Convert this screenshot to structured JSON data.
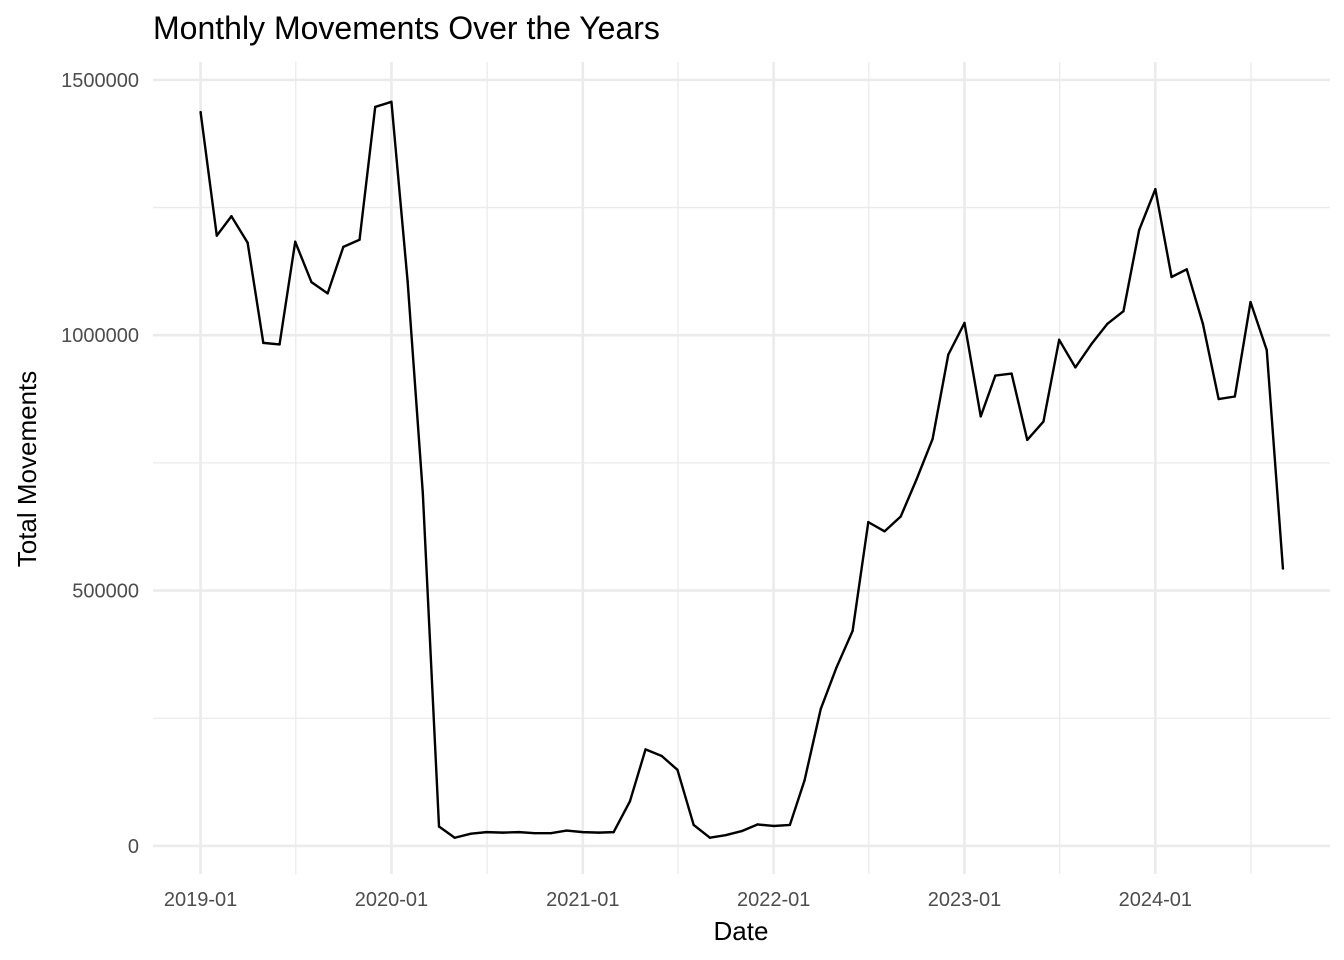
{
  "chart_data": {
    "type": "line",
    "title": "Monthly Movements Over the Years",
    "xlabel": "Date",
    "ylabel": "Total Movements",
    "xlim": [
      "2018-10-02",
      "2024-11-30"
    ],
    "ylim": [
      -55000,
      1535000
    ],
    "grid": true,
    "legend": "none",
    "x_ticks": [
      {
        "date": "2019-01-01",
        "label": "2019-01"
      },
      {
        "date": "2020-01-01",
        "label": "2020-01"
      },
      {
        "date": "2021-01-01",
        "label": "2021-01"
      },
      {
        "date": "2022-01-01",
        "label": "2022-01"
      },
      {
        "date": "2023-01-01",
        "label": "2023-01"
      },
      {
        "date": "2024-01-01",
        "label": "2024-01"
      }
    ],
    "x_minor_ticks": [
      "2019-07-02",
      "2020-07-02",
      "2021-07-02",
      "2022-07-02",
      "2023-07-02",
      "2024-07-02"
    ],
    "y_ticks": [
      {
        "value": 0,
        "label": "0"
      },
      {
        "value": 500000,
        "label": "500000"
      },
      {
        "value": 1000000,
        "label": "1000000"
      },
      {
        "value": 1500000,
        "label": "1500000"
      }
    ],
    "y_minor_ticks": [
      250000,
      750000,
      1250000
    ],
    "series": [
      {
        "color": "#000000",
        "x": [
          "2019-01-01",
          "2019-02-01",
          "2019-03-01",
          "2019-04-01",
          "2019-05-01",
          "2019-06-01",
          "2019-07-01",
          "2019-08-01",
          "2019-09-01",
          "2019-10-01",
          "2019-11-01",
          "2019-12-01",
          "2020-01-01",
          "2020-02-01",
          "2020-03-01",
          "2020-04-01",
          "2020-05-01",
          "2020-06-01",
          "2020-07-01",
          "2020-08-01",
          "2020-09-01",
          "2020-10-01",
          "2020-11-01",
          "2020-12-01",
          "2021-01-01",
          "2021-02-01",
          "2021-03-01",
          "2021-04-01",
          "2021-05-01",
          "2021-06-01",
          "2021-07-01",
          "2021-08-01",
          "2021-09-01",
          "2021-10-01",
          "2021-11-01",
          "2021-12-01",
          "2022-01-01",
          "2022-02-01",
          "2022-03-01",
          "2022-04-01",
          "2022-05-01",
          "2022-06-01",
          "2022-07-01",
          "2022-08-01",
          "2022-09-01",
          "2022-10-01",
          "2022-11-01",
          "2022-12-01",
          "2023-01-01",
          "2023-02-01",
          "2023-03-01",
          "2023-04-01",
          "2023-05-01",
          "2023-06-01",
          "2023-07-01",
          "2023-08-01",
          "2023-09-01",
          "2023-10-01",
          "2023-11-01",
          "2023-12-01",
          "2024-01-01",
          "2024-02-01",
          "2024-03-01",
          "2024-04-01",
          "2024-05-01",
          "2024-06-01",
          "2024-07-01",
          "2024-08-01",
          "2024-09-01"
        ],
        "y": [
          1437000,
          1195000,
          1233000,
          1181000,
          985000,
          982000,
          1183000,
          1104000,
          1082000,
          1173000,
          1187000,
          1447000,
          1457000,
          1105000,
          691000,
          38000,
          16000,
          24000,
          27000,
          26000,
          27000,
          25000,
          25000,
          30000,
          27000,
          26000,
          27000,
          87000,
          189000,
          176000,
          149000,
          41000,
          16000,
          21000,
          29000,
          42000,
          39000,
          41000,
          128000,
          268000,
          349000,
          421000,
          634000,
          616000,
          645000,
          717000,
          797000,
          962000,
          1024000,
          841000,
          921000,
          925000,
          795000,
          831000,
          991000,
          937000,
          983000,
          1022000,
          1047000,
          1206000,
          1286000,
          1114000,
          1129000,
          1022000,
          875000,
          880000,
          1065000,
          971000,
          543000
        ]
      }
    ]
  }
}
